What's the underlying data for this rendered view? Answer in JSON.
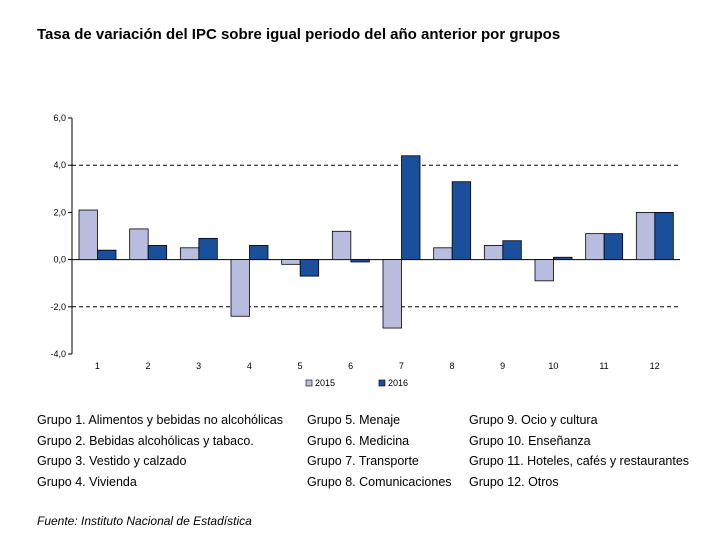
{
  "title": "Tasa de variación del IPC sobre igual periodo del año anterior por grupos",
  "source": "Fuente: Instituto Nacional de Estadística",
  "groups": [
    "Grupo 1. Alimentos y bebidas no alcohólicas",
    "Grupo 2. Bebidas alcohólicas y  tabaco.",
    "Grupo 3. Vestido y calzado",
    "Grupo 4. Vivienda",
    "Grupo 5. Menaje",
    "Grupo 6. Medicina",
    "Grupo 7. Transporte",
    "Grupo 8. Comunicaciones",
    "Grupo 9. Ocio y cultura",
    "Grupo 10. Enseñanza",
    "Grupo 11. Hoteles, cafés y restaurantes",
    "Grupo 12. Otros"
  ],
  "chart_data": {
    "type": "bar",
    "title": "Tasa de variación del IPC sobre igual periodo del año anterior por grupos",
    "categories": [
      "1",
      "2",
      "3",
      "4",
      "5",
      "6",
      "7",
      "8",
      "9",
      "10",
      "11",
      "12"
    ],
    "series": [
      {
        "name": "2015",
        "color": "#b8bde0",
        "values": [
          2.1,
          1.3,
          0.5,
          -2.4,
          -0.2,
          1.2,
          -2.9,
          0.5,
          0.6,
          -0.9,
          1.1,
          2.0
        ]
      },
      {
        "name": "2016",
        "color": "#1a4f9c",
        "values": [
          0.4,
          0.6,
          0.9,
          0.6,
          -0.7,
          -0.1,
          4.4,
          3.3,
          0.8,
          0.1,
          1.1,
          2.0
        ]
      }
    ],
    "y_ticks": [
      "6,0",
      "4,0",
      "2,0",
      "0,0",
      "-2,0",
      "-4,0"
    ],
    "ylim": [
      -4,
      6
    ],
    "grid": "dashed horizontal at 4, 0, -2",
    "legend": "bottom-center",
    "xlabel": "",
    "ylabel": ""
  }
}
